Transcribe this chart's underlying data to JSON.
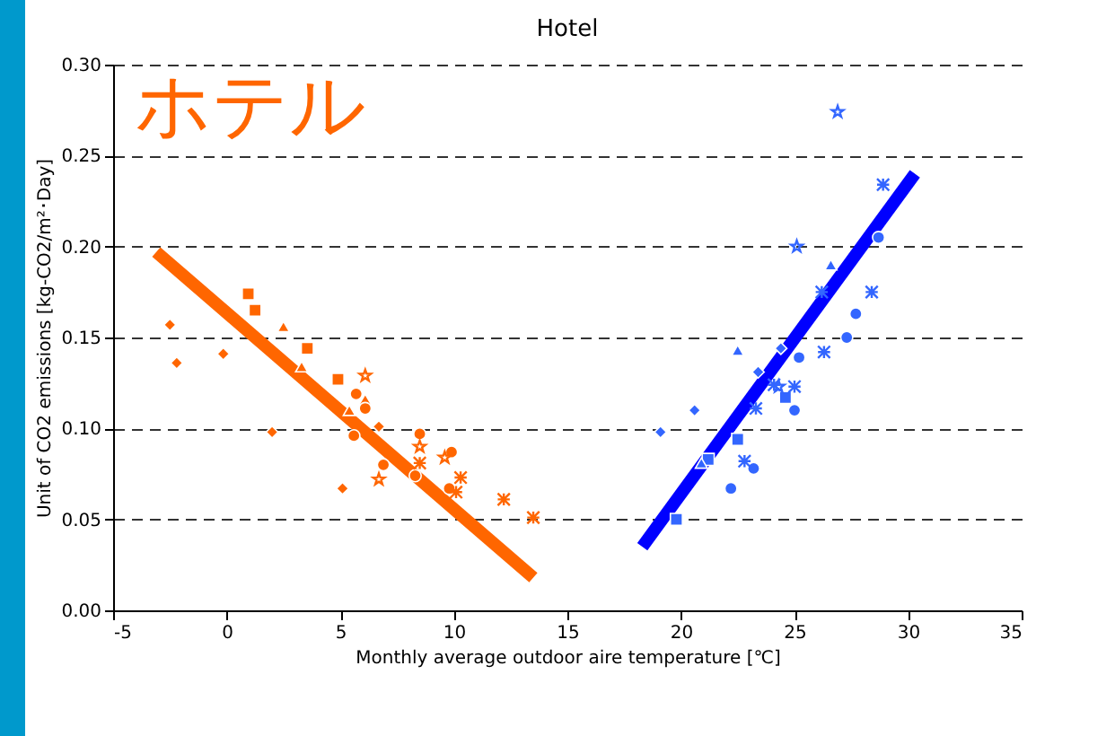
{
  "chart_data": {
    "type": "scatter",
    "title": "Hotel",
    "xlabel": "Monthly average outdoor aire temperature  [℃]",
    "ylabel": "Unit of CO2 emissions [kg-CO2/m²･Day]",
    "annotations": [
      "ホテル"
    ],
    "xlim": [
      -5,
      35
    ],
    "xticks": [
      -5,
      0,
      5,
      10,
      15,
      20,
      25,
      30,
      35
    ],
    "ylim": [
      0,
      0.3
    ],
    "yticks": [
      {
        "value": 0,
        "label": "0.00"
      },
      {
        "value": 0.05,
        "label": "0.05"
      },
      {
        "value": 0.1,
        "label": "0.10"
      },
      {
        "value": 0.15,
        "label": "0.15"
      },
      {
        "value": 0.2,
        "label": "0.20"
      },
      {
        "value": 0.25,
        "label": "0.25"
      },
      {
        "value": 0.3,
        "label": "0.30"
      }
    ],
    "grid": "y",
    "series": [
      {
        "marker": "diamond",
        "color": "#ff6600",
        "x": [
          -2.5,
          -2.2,
          -0.15,
          2.0,
          5.1,
          6.7
        ],
        "values": [
          0.157,
          0.136,
          0.141,
          0.098,
          0.067,
          0.101
        ]
      },
      {
        "marker": "square",
        "color": "#ff6600",
        "x": [
          0.95,
          1.25,
          3.55,
          4.9
        ],
        "values": [
          0.174,
          0.165,
          0.144,
          0.127
        ]
      },
      {
        "marker": "triangle",
        "color": "#ff6600",
        "x": [
          2.5,
          3.3,
          5.4,
          6.1
        ],
        "values": [
          0.156,
          0.134,
          0.11,
          0.116
        ]
      },
      {
        "marker": "circle",
        "color": "#ff6600",
        "x": [
          5.6,
          6.9,
          8.3,
          9.8,
          5.7,
          6.1,
          8.5,
          9.9
        ],
        "values": [
          0.096,
          0.08,
          0.074,
          0.067,
          0.119,
          0.111,
          0.097,
          0.087
        ]
      },
      {
        "marker": "star",
        "color": "#ff6600",
        "x": [
          6.1,
          6.7,
          8.5,
          9.6
        ],
        "values": [
          0.129,
          0.072,
          0.09,
          0.084
        ]
      },
      {
        "marker": "cross",
        "color": "#ff6600",
        "x": [
          8.5,
          10.3,
          10.1,
          12.2,
          13.5
        ],
        "values": [
          0.081,
          0.073,
          0.065,
          0.061,
          0.051
        ]
      },
      {
        "type": "line",
        "color": "#ff6600",
        "x": [
          -3.1,
          13.5
        ],
        "values": [
          0.197,
          0.018
        ]
      },
      {
        "marker": "diamond",
        "color": "#3366ff",
        "x": [
          19.1,
          20.6,
          23.4,
          24.4
        ],
        "values": [
          0.098,
          0.11,
          0.131,
          0.144
        ]
      },
      {
        "marker": "square",
        "color": "#3366ff",
        "x": [
          19.8,
          21.2,
          22.5,
          24.6
        ],
        "values": [
          0.05,
          0.083,
          0.094,
          0.117
        ]
      },
      {
        "marker": "triangle",
        "color": "#3366ff",
        "x": [
          20.9,
          22.5,
          26.6
        ],
        "values": [
          0.081,
          0.143,
          0.19
        ]
      },
      {
        "marker": "circle",
        "color": "#3366ff",
        "x": [
          23.2,
          25.2,
          27.3,
          28.7,
          22.2,
          25.0,
          27.7
        ],
        "values": [
          0.078,
          0.139,
          0.15,
          0.205,
          0.067,
          0.11,
          0.163
        ]
      },
      {
        "marker": "star",
        "color": "#3366ff",
        "x": [
          25.1,
          26.9,
          24.3
        ],
        "values": [
          0.2,
          0.274,
          0.123
        ]
      },
      {
        "marker": "cross",
        "color": "#3366ff",
        "x": [
          22.8,
          23.3,
          25.0,
          26.3,
          28.4,
          24.1,
          26.2,
          28.9
        ],
        "values": [
          0.082,
          0.111,
          0.123,
          0.142,
          0.175,
          0.124,
          0.175,
          0.234
        ]
      },
      {
        "type": "line",
        "color": "#0000ff",
        "x": [
          18.3,
          30.3
        ],
        "values": [
          0.035,
          0.24
        ]
      }
    ]
  }
}
